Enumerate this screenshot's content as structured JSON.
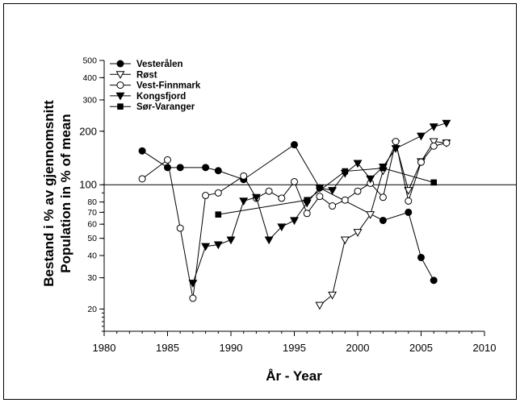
{
  "chart_data": {
    "type": "line",
    "xlabel": "År  -  Year",
    "ylabel_line1": "Bestand i % av gjennomsnitt",
    "ylabel_line2": "Population in % of mean",
    "xlim": [
      1980,
      2010
    ],
    "ylim": [
      15,
      500
    ],
    "yscale": "log",
    "x_ticks": [
      1980,
      1985,
      1990,
      1995,
      2000,
      2005,
      2010
    ],
    "y_ticks": [
      20,
      30,
      40,
      50,
      60,
      70,
      80,
      100,
      200,
      300,
      400,
      500
    ],
    "reference_line": 100,
    "grid": false,
    "legend_position": "top-left",
    "series": [
      {
        "name": "Vesterålen",
        "marker": "filled-circle",
        "points": [
          [
            1983,
            155
          ],
          [
            1985,
            125
          ],
          [
            1986,
            125
          ],
          [
            1988,
            125
          ],
          [
            1989,
            120
          ],
          [
            1991,
            107
          ],
          [
            1995,
            168
          ],
          [
            1997,
            96
          ],
          [
            2002,
            63
          ],
          [
            2004,
            70
          ],
          [
            2005,
            39
          ],
          [
            2006,
            29
          ]
        ]
      },
      {
        "name": "Røst",
        "marker": "open-triangle-down",
        "points": [
          [
            1997,
            21
          ],
          [
            1998,
            24
          ],
          [
            1999,
            49
          ],
          [
            2000,
            54
          ],
          [
            2001,
            68
          ],
          [
            2002,
            120
          ],
          [
            2003,
            170
          ],
          [
            2004,
            93
          ],
          [
            2005,
            135
          ],
          [
            2006,
            175
          ],
          [
            2007,
            172
          ]
        ]
      },
      {
        "name": "Vest-Finnmark",
        "marker": "open-circle",
        "points": [
          [
            1983,
            108
          ],
          [
            1985,
            138
          ],
          [
            1986,
            57
          ],
          [
            1987,
            23
          ],
          [
            1988,
            87
          ],
          [
            1989,
            90
          ],
          [
            1991,
            112
          ],
          [
            1992,
            84
          ],
          [
            1993,
            92
          ],
          [
            1994,
            84
          ],
          [
            1995,
            104
          ],
          [
            1996,
            69
          ],
          [
            1997,
            86
          ],
          [
            1998,
            76
          ],
          [
            1999,
            82
          ],
          [
            2000,
            92
          ],
          [
            2001,
            102
          ],
          [
            2002,
            85
          ],
          [
            2003,
            175
          ],
          [
            2004,
            81
          ],
          [
            2005,
            134
          ],
          [
            2006,
            165
          ],
          [
            2007,
            172
          ]
        ]
      },
      {
        "name": "Kongsfjord",
        "marker": "filled-triangle-down",
        "points": [
          [
            1987,
            28
          ],
          [
            1988,
            45
          ],
          [
            1989,
            46
          ],
          [
            1990,
            49
          ],
          [
            1991,
            81
          ],
          [
            1992,
            85
          ],
          [
            1993,
            49
          ],
          [
            1994,
            58
          ],
          [
            1995,
            63
          ],
          [
            1996,
            79
          ],
          [
            1997,
            96
          ],
          [
            1998,
            93
          ],
          [
            1999,
            116
          ],
          [
            2000,
            132
          ],
          [
            2001,
            108
          ],
          [
            2002,
            126
          ],
          [
            2003,
            160
          ],
          [
            2005,
            188
          ],
          [
            2006,
            212
          ],
          [
            2007,
            222
          ]
        ]
      },
      {
        "name": "Sør-Varanger",
        "marker": "filled-square",
        "points": [
          [
            1989,
            68
          ],
          [
            1996,
            82
          ],
          [
            1999,
            119
          ],
          [
            2002,
            124
          ],
          [
            2006,
            103
          ]
        ]
      }
    ]
  }
}
